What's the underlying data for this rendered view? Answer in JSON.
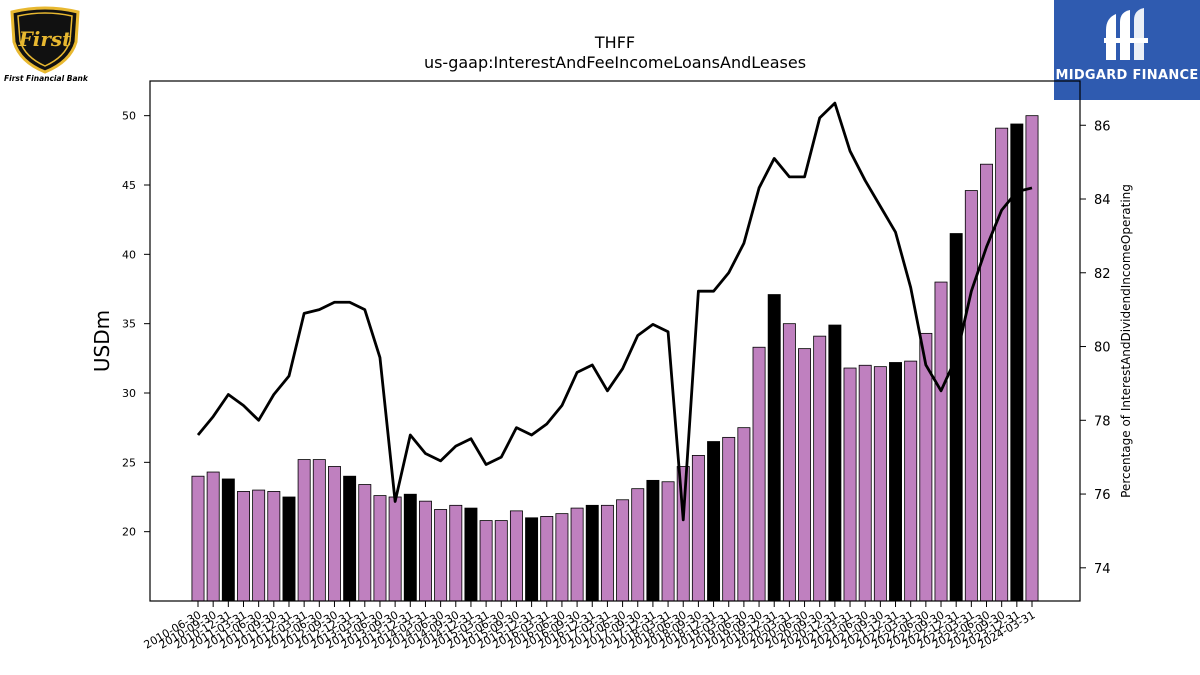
{
  "logos": {
    "left_brand": "First Financial Bank",
    "left_emblem_text": "First",
    "right_brand": "MIDGARD FINANCE"
  },
  "colors": {
    "bar_purple": "#bf80bf",
    "bar_black": "#000000",
    "line": "#000000",
    "logo_right_bg": "#2f5bb0",
    "emblem_gold": "#e8b830"
  },
  "chart_data": {
    "type": "bar",
    "title": "THFF",
    "subtitle": "us-gaap:InterestAndFeeIncomeLoansAndLeases",
    "ylabel": "USDm",
    "y2label": "Percentage of InterestAndDividendIncomeOperating",
    "ylim": [
      15,
      52.5
    ],
    "y2lim": [
      73.1,
      87.2
    ],
    "yticks": [
      20,
      25,
      30,
      35,
      40,
      45,
      50
    ],
    "y2ticks": [
      74,
      76,
      78,
      80,
      82,
      84,
      86
    ],
    "x_tick_labels": [
      "2010-06-30",
      "2010-09-30",
      "2010-12-31",
      "2011-03-31",
      "2011-06-30",
      "2011-09-30",
      "2011-12-31",
      "2012-03-31",
      "2012-06-30",
      "2012-09-30",
      "2012-12-31",
      "2013-03-31",
      "2013-06-30",
      "2013-09-30",
      "2013-12-31",
      "2014-03-31",
      "2014-06-30",
      "2014-09-30",
      "2014-12-31",
      "2015-03-31",
      "2015-06-30",
      "2015-09-30",
      "2015-12-31",
      "2016-03-31",
      "2016-06-30",
      "2016-09-30",
      "2016-12-31",
      "2017-03-31",
      "2017-06-30",
      "2017-09-30",
      "2017-12-31",
      "2018-03-31",
      "2018-06-30",
      "2018-09-30",
      "2018-12-31",
      "2019-03-31",
      "2019-06-30",
      "2019-09-30",
      "2019-12-31",
      "2020-03-31",
      "2020-06-30",
      "2020-09-30",
      "2020-12-31",
      "2021-03-31",
      "2021-06-30",
      "2021-09-30",
      "2021-12-31",
      "2022-03-31",
      "2022-06-30",
      "2022-09-30",
      "2022-12-31",
      "2023-03-31",
      "2023-06-30",
      "2023-09-30",
      "2023-12-31",
      "2024-03-31"
    ],
    "x": [
      "2010-06-30",
      "2010-09-30",
      "2010-12-31",
      "2011-03-31",
      "2011-06-30",
      "2011-09-30",
      "2011-12-31",
      "2012-03-31",
      "2012-06-30",
      "2012-09-30",
      "2012-12-31",
      "2013-03-31",
      "2013-06-30",
      "2013-09-30",
      "2013-12-31",
      "2014-03-31",
      "2014-06-30",
      "2014-09-30",
      "2014-12-31",
      "2015-03-31",
      "2015-06-30",
      "2015-09-30",
      "2015-12-31",
      "2016-03-31",
      "2016-06-30",
      "2016-09-30",
      "2016-12-31",
      "2017-03-31",
      "2017-06-30",
      "2017-09-30",
      "2017-12-31",
      "2018-03-31",
      "2018-06-30",
      "2018-09-30",
      "2018-12-31",
      "2019-03-31",
      "2019-06-30",
      "2019-09-30",
      "2019-12-31",
      "2020-03-31",
      "2020-06-30",
      "2020-09-30",
      "2020-12-31",
      "2021-03-31",
      "2021-06-30",
      "2021-09-30",
      "2021-12-31",
      "2022-03-31",
      "2022-06-30",
      "2022-09-30",
      "2022-12-31",
      "2023-03-31",
      "2023-06-30",
      "2023-09-30",
      "2023-12-31",
      "2024-03-31"
    ],
    "series": [
      {
        "axis": "left",
        "kind": "bar",
        "values": [
          24.0,
          24.3,
          23.8,
          22.9,
          23.0,
          22.9,
          22.5,
          25.2,
          25.2,
          24.7,
          24.0,
          23.4,
          22.6,
          22.5,
          22.7,
          22.2,
          21.6,
          21.9,
          21.7,
          20.8,
          20.8,
          21.5,
          21.0,
          21.1,
          21.3,
          21.7,
          21.9,
          21.9,
          22.3,
          23.1,
          23.7,
          23.6,
          24.7,
          25.5,
          26.5,
          26.8,
          27.5,
          33.3,
          37.1,
          35.0,
          33.2,
          34.1,
          34.9,
          31.8,
          32.0,
          31.9,
          32.2,
          32.3,
          34.3,
          38.0,
          41.5,
          44.6,
          46.5,
          49.1,
          49.4,
          50.0
        ],
        "bar_colors": [
          "#bf80bf",
          "#bf80bf",
          "#000000",
          "#bf80bf",
          "#bf80bf",
          "#bf80bf",
          "#000000",
          "#bf80bf",
          "#bf80bf",
          "#bf80bf",
          "#000000",
          "#bf80bf",
          "#bf80bf",
          "#bf80bf",
          "#000000",
          "#bf80bf",
          "#bf80bf",
          "#bf80bf",
          "#000000",
          "#bf80bf",
          "#bf80bf",
          "#bf80bf",
          "#000000",
          "#bf80bf",
          "#bf80bf",
          "#bf80bf",
          "#000000",
          "#bf80bf",
          "#bf80bf",
          "#bf80bf",
          "#000000",
          "#bf80bf",
          "#bf80bf",
          "#bf80bf",
          "#000000",
          "#bf80bf",
          "#bf80bf",
          "#bf80bf",
          "#000000",
          "#bf80bf",
          "#bf80bf",
          "#bf80bf",
          "#000000",
          "#bf80bf",
          "#bf80bf",
          "#bf80bf",
          "#000000",
          "#bf80bf",
          "#bf80bf",
          "#bf80bf",
          "#000000",
          "#bf80bf",
          "#bf80bf",
          "#bf80bf",
          "#000000",
          "#bf80bf"
        ]
      },
      {
        "axis": "right",
        "kind": "line",
        "values": [
          77.6,
          78.1,
          78.7,
          78.4,
          78.0,
          78.7,
          79.2,
          80.9,
          81.0,
          81.2,
          81.2,
          81.0,
          79.7,
          75.8,
          77.6,
          77.1,
          76.9,
          77.3,
          77.5,
          76.8,
          77.0,
          77.8,
          77.6,
          77.9,
          78.4,
          79.3,
          79.5,
          78.8,
          79.4,
          80.3,
          80.6,
          80.4,
          75.3,
          81.5,
          81.5,
          82.0,
          82.8,
          84.3,
          85.1,
          84.6,
          84.6,
          86.2,
          86.6,
          85.3,
          84.5,
          83.8,
          83.1,
          81.6,
          79.5,
          78.8,
          79.7,
          81.5,
          82.7,
          83.7,
          84.2,
          84.3
        ]
      }
    ],
    "grid": false,
    "legend": "none"
  }
}
